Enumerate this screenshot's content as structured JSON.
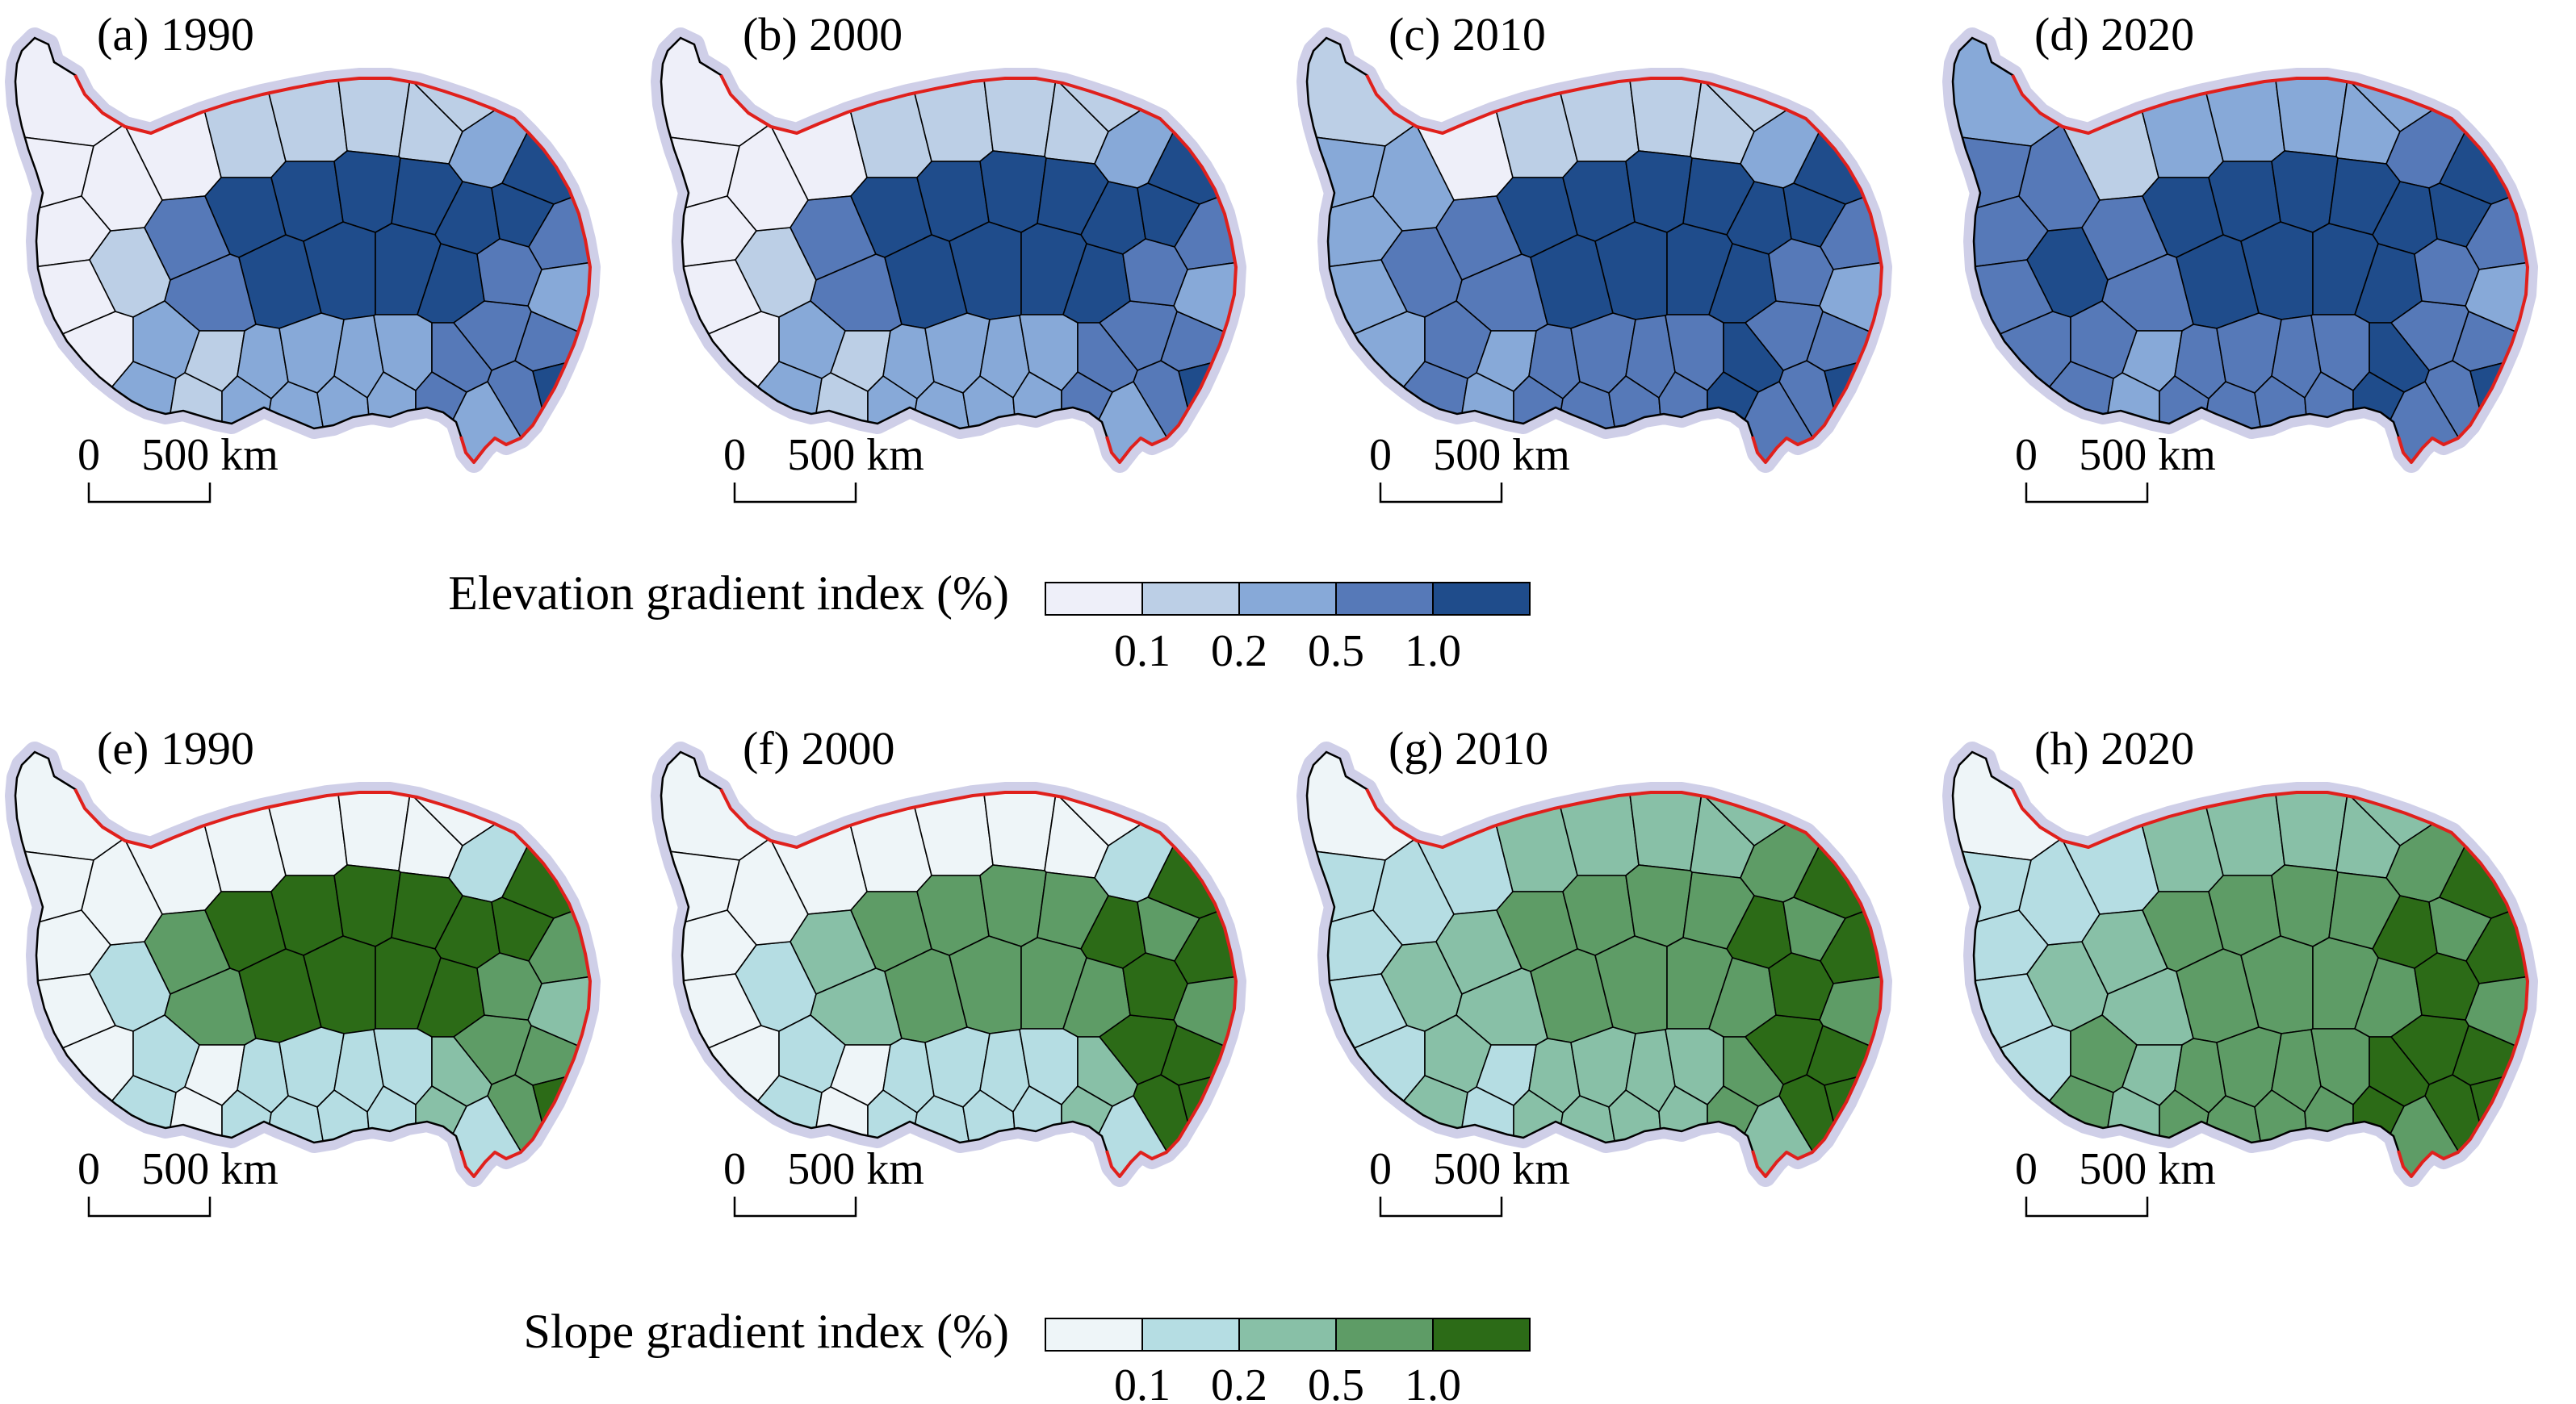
{
  "scale_bar": {
    "zero": "0",
    "distance": "500 km"
  },
  "rows": [
    {
      "id": "elevation",
      "legend": {
        "title": "Elevation gradient index (%)",
        "ticks": [
          "0.1",
          "0.2",
          "0.5",
          "1.0"
        ],
        "colors": [
          "#eeeff9",
          "#bccfe6",
          "#87a9d8",
          "#5679b8",
          "#1f4c8b"
        ]
      },
      "panels": [
        {
          "label": "(a) 1990",
          "year": 1990,
          "class_map": "1990"
        },
        {
          "label": "(b) 2000",
          "year": 2000,
          "class_map": "2000"
        },
        {
          "label": "(c) 2010",
          "year": 2010,
          "class_map": "2010"
        },
        {
          "label": "(d) 2020",
          "year": 2020,
          "class_map": "2020"
        }
      ]
    },
    {
      "id": "slope",
      "legend": {
        "title": "Slope gradient index (%)",
        "ticks": [
          "0.1",
          "0.2",
          "0.5",
          "1.0"
        ],
        "colors": [
          "#eef5f8",
          "#b5dde3",
          "#88c0a7",
          "#5e9c66",
          "#2c6b17"
        ]
      },
      "panels": [
        {
          "label": "(e) 1990",
          "year": 1990,
          "class_map": "1990"
        },
        {
          "label": "(f) 2000",
          "year": 2000,
          "class_map": "2000"
        },
        {
          "label": "(g) 2010",
          "year": 2010,
          "class_map": "2010"
        },
        {
          "label": "(h) 2020",
          "year": 2020,
          "class_map": "2020"
        }
      ]
    }
  ],
  "map_style": {
    "border_color": "#e0201c",
    "halo_color": "#cfcfe8",
    "outline_color": "#000000"
  }
}
